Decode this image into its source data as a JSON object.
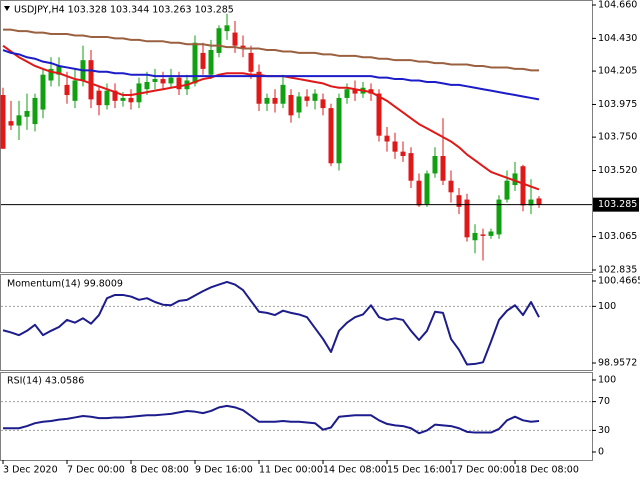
{
  "chart_data": [
    {
      "type": "candlestick",
      "title": "USDJPY,H4  103.328 103.344 103.263 103.285",
      "categories": [
        "3 Dec 2020",
        null,
        null,
        null,
        null,
        null,
        null,
        null,
        "7 Dec 00:00",
        null,
        null,
        null,
        null,
        null,
        null,
        null,
        "8 Dec 08:00",
        null,
        null,
        null,
        null,
        null,
        null,
        null,
        "9 Dec 16:00",
        null,
        null,
        null,
        null,
        null,
        null,
        null,
        "11 Dec 00:00",
        null,
        null,
        null,
        null,
        null,
        null,
        null,
        "14 Dec 08:00",
        null,
        null,
        null,
        null,
        null,
        null,
        null,
        "15 Dec 16:00",
        null,
        null,
        null,
        null,
        null,
        null,
        null,
        "17 Dec 00:00",
        null,
        null,
        null,
        null,
        null,
        null,
        null,
        "18 Dec 08:00",
        null,
        null,
        null
      ],
      "candles": {
        "open": [
          104.04,
          103.86,
          103.83,
          103.89,
          103.84,
          103.94,
          104.14,
          104.18,
          104.11,
          104.0,
          104.14,
          104.28,
          104.07,
          103.97,
          104.07,
          104.0,
          104.02,
          103.99,
          104.08,
          104.13,
          104.15,
          104.12,
          104.16,
          104.08,
          104.12,
          104.33,
          104.18,
          104.33,
          104.48,
          104.47,
          104.38,
          104.33,
          104.2,
          103.98,
          104.02,
          103.98,
          104.04,
          103.92,
          104.03,
          104.0,
          104.01,
          103.95,
          103.57,
          104.02,
          104.08,
          104.05,
          104.08,
          104.05,
          103.76,
          103.72,
          103.65,
          103.64,
          103.45,
          103.29,
          103.5,
          103.62,
          103.45,
          103.35,
          103.32,
          103.04,
          103.08,
          103.07,
          103.08,
          103.32,
          103.42,
          103.55,
          103.28,
          103.328
        ],
        "high": [
          104.09,
          104.0,
          104.0,
          104.05,
          104.05,
          104.22,
          104.3,
          104.3,
          104.2,
          104.22,
          104.38,
          104.35,
          104.1,
          104.12,
          104.12,
          104.06,
          104.08,
          104.16,
          104.2,
          104.22,
          104.2,
          104.22,
          104.2,
          104.18,
          104.45,
          104.4,
          104.42,
          104.52,
          104.6,
          104.55,
          104.45,
          104.38,
          104.25,
          104.05,
          104.08,
          104.18,
          104.08,
          104.06,
          104.08,
          104.08,
          104.05,
          103.98,
          104.05,
          104.12,
          104.14,
          104.13,
          104.12,
          104.08,
          103.82,
          103.78,
          103.72,
          103.68,
          103.5,
          103.52,
          103.68,
          103.88,
          103.52,
          103.4,
          103.36,
          103.15,
          103.12,
          103.12,
          103.35,
          103.52,
          103.58,
          103.56,
          103.46,
          103.344
        ],
        "low": [
          103.67,
          103.8,
          103.73,
          103.8,
          103.79,
          103.88,
          104.1,
          104.1,
          103.98,
          103.95,
          104.1,
          103.95,
          103.9,
          103.94,
          103.95,
          103.96,
          103.94,
          103.95,
          104.04,
          104.08,
          104.08,
          104.09,
          104.04,
          104.04,
          104.1,
          104.18,
          104.15,
          104.3,
          104.42,
          104.33,
          104.3,
          104.15,
          103.93,
          103.93,
          103.92,
          103.95,
          103.85,
          103.88,
          103.96,
          103.94,
          103.9,
          103.55,
          103.52,
          103.98,
          104.0,
          104.02,
          104.0,
          103.72,
          103.65,
          103.6,
          103.58,
          103.4,
          103.27,
          103.27,
          103.47,
          103.42,
          103.3,
          103.22,
          103.03,
          102.95,
          102.9,
          103.05,
          103.05,
          103.3,
          103.38,
          103.24,
          103.22,
          103.263
        ],
        "close": [
          103.67,
          103.83,
          103.9,
          103.93,
          104.02,
          104.18,
          104.22,
          104.24,
          104.04,
          104.14,
          104.28,
          104.01,
          103.97,
          104.07,
          104.0,
          104.02,
          103.99,
          104.12,
          104.13,
          104.15,
          104.12,
          104.16,
          104.08,
          104.14,
          104.4,
          104.22,
          104.35,
          104.5,
          104.52,
          104.38,
          104.36,
          104.2,
          103.98,
          104.02,
          103.98,
          104.11,
          103.9,
          104.03,
          104.0,
          104.05,
          103.95,
          103.57,
          104.02,
          104.08,
          104.05,
          104.09,
          104.05,
          103.76,
          103.72,
          103.65,
          103.62,
          103.45,
          103.28,
          103.5,
          103.62,
          103.45,
          103.37,
          103.27,
          103.06,
          103.09,
          103.07,
          103.1,
          103.32,
          103.45,
          103.5,
          103.28,
          103.32,
          103.285
        ]
      },
      "up_color": "#10a010",
      "down_color": "#e01818",
      "series": [
        {
          "color": "#e01818",
          "values": [
            104.38,
            104.34,
            104.3,
            104.27,
            104.24,
            104.22,
            104.2,
            104.19,
            104.17,
            104.15,
            104.14,
            104.12,
            104.1,
            104.08,
            104.06,
            104.04,
            104.04,
            104.05,
            104.06,
            104.07,
            104.08,
            104.09,
            104.1,
            104.11,
            104.13,
            104.15,
            104.16,
            104.18,
            104.19,
            104.19,
            104.19,
            104.18,
            104.18,
            104.17,
            104.17,
            104.17,
            104.16,
            104.15,
            104.14,
            104.13,
            104.12,
            104.1,
            104.09,
            104.09,
            104.08,
            104.07,
            104.06,
            104.03,
            104.0,
            103.96,
            103.92,
            103.88,
            103.84,
            103.81,
            103.78,
            103.75,
            103.72,
            103.68,
            103.63,
            103.59,
            103.55,
            103.51,
            103.49,
            103.47,
            103.45,
            103.43,
            103.41,
            103.39
          ]
        },
        {
          "color": "#1c1cc8",
          "values": [
            104.35,
            104.33,
            104.32,
            104.3,
            104.29,
            104.27,
            104.26,
            104.24,
            104.23,
            104.22,
            104.21,
            104.21,
            104.2,
            104.2,
            104.19,
            104.19,
            104.18,
            104.18,
            104.18,
            104.17,
            104.17,
            104.17,
            104.17,
            104.17,
            104.17,
            104.17,
            104.17,
            104.17,
            104.17,
            104.17,
            104.17,
            104.17,
            104.17,
            104.17,
            104.17,
            104.17,
            104.17,
            104.17,
            104.17,
            104.17,
            104.17,
            104.17,
            104.17,
            104.17,
            104.17,
            104.17,
            104.17,
            104.16,
            104.16,
            104.15,
            104.15,
            104.14,
            104.14,
            104.13,
            104.13,
            104.12,
            104.11,
            104.11,
            104.1,
            104.09,
            104.08,
            104.07,
            104.06,
            104.05,
            104.04,
            104.03,
            104.02,
            104.01
          ]
        },
        {
          "color": "#9a6040",
          "values": [
            104.49,
            104.49,
            104.48,
            104.48,
            104.47,
            104.47,
            104.46,
            104.46,
            104.46,
            104.45,
            104.45,
            104.44,
            104.44,
            104.44,
            104.43,
            104.43,
            104.42,
            104.42,
            104.41,
            104.41,
            104.41,
            104.4,
            104.4,
            104.39,
            104.39,
            104.39,
            104.38,
            104.38,
            104.37,
            104.37,
            104.36,
            104.36,
            104.36,
            104.35,
            104.35,
            104.34,
            104.34,
            104.33,
            104.33,
            104.33,
            104.32,
            104.32,
            104.31,
            104.31,
            104.31,
            104.3,
            104.3,
            104.29,
            104.29,
            104.28,
            104.28,
            104.28,
            104.27,
            104.27,
            104.26,
            104.26,
            104.25,
            104.25,
            104.25,
            104.24,
            104.24,
            104.23,
            104.23,
            104.23,
            104.22,
            104.22,
            104.21,
            104.21
          ]
        }
      ],
      "ylim": [
        102.835,
        104.66
      ],
      "yticks": [
        {
          "value": 104.66,
          "label": "104.660"
        },
        {
          "value": 104.43,
          "label": "104.430"
        },
        {
          "value": 104.205,
          "label": "104.205"
        },
        {
          "value": 103.975,
          "label": "103.975"
        },
        {
          "value": 103.75,
          "label": "103.750"
        },
        {
          "value": 103.52,
          "label": "103.520"
        },
        {
          "value": 103.065,
          "label": "103.065"
        },
        {
          "value": 102.835,
          "label": "102.835"
        }
      ],
      "last_price": {
        "value": 103.285,
        "label": "103.285"
      }
    },
    {
      "type": "line",
      "title": "Momentum(14) 99.8009",
      "series": [
        {
          "color": "#1c1c8c",
          "values": [
            99.56,
            99.52,
            99.47,
            99.55,
            99.66,
            99.47,
            99.55,
            99.62,
            99.75,
            99.7,
            99.78,
            99.68,
            99.84,
            100.15,
            100.21,
            100.21,
            100.18,
            100.12,
            100.15,
            100.08,
            100.03,
            100.02,
            100.1,
            100.12,
            100.2,
            100.28,
            100.35,
            100.4,
            100.45,
            100.4,
            100.3,
            100.1,
            99.9,
            99.88,
            99.84,
            99.92,
            99.88,
            99.85,
            99.8,
            99.6,
            99.4,
            99.16,
            99.55,
            99.7,
            99.8,
            99.85,
            100.02,
            99.8,
            99.75,
            99.78,
            99.75,
            99.55,
            99.38,
            99.55,
            99.9,
            99.88,
            99.4,
            99.2,
            98.93,
            98.94,
            98.97,
            99.35,
            99.75,
            99.92,
            100.02,
            99.84,
            100.08,
            99.8009
          ]
        }
      ],
      "ylim": [
        98.9572,
        100.4665
      ],
      "yticks": [
        100.4665,
        100,
        98.9572
      ],
      "levels": true
    },
    {
      "type": "line",
      "title": "RSI(14) 43.0586",
      "series": [
        {
          "color": "#1c1c8c",
          "values": [
            33,
            33,
            33,
            36,
            40,
            42,
            43,
            45,
            46,
            48,
            50,
            49,
            47,
            47,
            48,
            48,
            49,
            50,
            51,
            51,
            52,
            53,
            55,
            57,
            56,
            54,
            57,
            62,
            64,
            62,
            58,
            50,
            42,
            42,
            42,
            43,
            42,
            42,
            41,
            40,
            31,
            34,
            49,
            50,
            51,
            51,
            51,
            44,
            39,
            37,
            36,
            33,
            26,
            30,
            38,
            37,
            36,
            33,
            28,
            27,
            27,
            27,
            32,
            44,
            49,
            44,
            42,
            43.0586
          ]
        }
      ],
      "ylim": [
        0,
        100
      ],
      "yticks": [
        100,
        70,
        30,
        0
      ],
      "levels": true
    }
  ]
}
